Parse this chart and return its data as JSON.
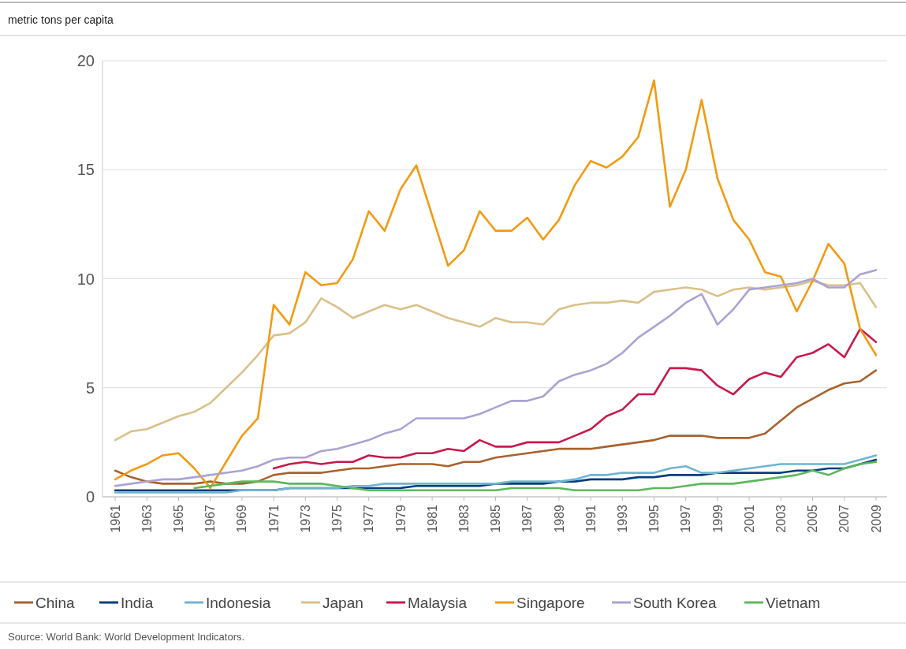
{
  "chart_data": {
    "type": "line",
    "ylabel": "metric tons per capita",
    "x": [
      1961,
      1962,
      1963,
      1964,
      1965,
      1966,
      1967,
      1968,
      1969,
      1970,
      1971,
      1972,
      1973,
      1974,
      1975,
      1976,
      1977,
      1978,
      1979,
      1980,
      1981,
      1982,
      1983,
      1984,
      1985,
      1986,
      1987,
      1988,
      1989,
      1990,
      1991,
      1992,
      1993,
      1994,
      1995,
      1996,
      1997,
      1998,
      1999,
      2000,
      2001,
      2002,
      2003,
      2004,
      2005,
      2006,
      2007,
      2008,
      2009
    ],
    "xlim": [
      1960.2,
      2009.7
    ],
    "xticks": [
      1961,
      1963,
      1965,
      1967,
      1969,
      1971,
      1973,
      1975,
      1977,
      1979,
      1981,
      1983,
      1985,
      1987,
      1989,
      1991,
      1993,
      1995,
      1997,
      1999,
      2001,
      2003,
      2005,
      2007,
      2009
    ],
    "ylim": [
      0,
      20
    ],
    "yticks": [
      0,
      5,
      10,
      15,
      20
    ],
    "grid": "y",
    "legend": "bottom",
    "line_style": "solid",
    "annotations": [
      "Source: World Bank: World Development Indicators."
    ],
    "series": [
      {
        "name": "China",
        "color": "#a8622e",
        "values": [
          1.2,
          0.9,
          0.7,
          0.6,
          0.6,
          0.6,
          0.7,
          0.6,
          0.6,
          0.7,
          1.0,
          1.1,
          1.1,
          1.1,
          1.2,
          1.3,
          1.3,
          1.4,
          1.5,
          1.5,
          1.5,
          1.4,
          1.6,
          1.6,
          1.8,
          1.9,
          2.0,
          2.1,
          2.2,
          2.2,
          2.2,
          2.3,
          2.4,
          2.5,
          2.6,
          2.8,
          2.8,
          2.8,
          2.7,
          2.7,
          2.7,
          2.9,
          3.5,
          4.1,
          4.5,
          4.9,
          5.2,
          5.3,
          5.8
        ]
      },
      {
        "name": "India",
        "color": "#0b3c7d",
        "values": [
          0.3,
          0.3,
          0.3,
          0.3,
          0.3,
          0.3,
          0.3,
          0.3,
          0.3,
          0.3,
          0.3,
          0.4,
          0.4,
          0.4,
          0.4,
          0.4,
          0.4,
          0.4,
          0.4,
          0.5,
          0.5,
          0.5,
          0.5,
          0.5,
          0.6,
          0.6,
          0.6,
          0.6,
          0.7,
          0.7,
          0.8,
          0.8,
          0.8,
          0.9,
          0.9,
          1.0,
          1.0,
          1.0,
          1.1,
          1.1,
          1.1,
          1.1,
          1.1,
          1.2,
          1.2,
          1.3,
          1.3,
          1.5,
          1.7
        ]
      },
      {
        "name": "Indonesia",
        "color": "#6fb5d0",
        "values": [
          0.2,
          0.2,
          0.2,
          0.2,
          0.2,
          0.2,
          0.2,
          0.2,
          0.3,
          0.3,
          0.3,
          0.4,
          0.4,
          0.4,
          0.4,
          0.5,
          0.5,
          0.6,
          0.6,
          0.6,
          0.6,
          0.6,
          0.6,
          0.6,
          0.6,
          0.7,
          0.7,
          0.7,
          0.7,
          0.8,
          1.0,
          1.0,
          1.1,
          1.1,
          1.1,
          1.3,
          1.4,
          1.1,
          1.1,
          1.2,
          1.3,
          1.4,
          1.5,
          1.5,
          1.5,
          1.5,
          1.5,
          1.7,
          1.9
        ]
      },
      {
        "name": "Japan",
        "color": "#d9c08a",
        "values": [
          2.6,
          3.0,
          3.1,
          3.4,
          3.7,
          3.9,
          4.3,
          5.0,
          5.7,
          6.5,
          7.4,
          7.5,
          8.0,
          9.1,
          8.7,
          8.2,
          8.5,
          8.8,
          8.6,
          8.8,
          8.5,
          8.2,
          8.0,
          7.8,
          8.2,
          8.0,
          8.0,
          7.9,
          8.6,
          8.8,
          8.9,
          8.9,
          9.0,
          8.9,
          9.4,
          9.5,
          9.6,
          9.5,
          9.2,
          9.5,
          9.6,
          9.5,
          9.6,
          9.7,
          9.9,
          9.7,
          9.7,
          9.8,
          8.7
        ]
      },
      {
        "name": "Malaysia",
        "color": "#c8194b",
        "values": [
          null,
          null,
          null,
          null,
          null,
          null,
          null,
          null,
          null,
          null,
          1.3,
          1.5,
          1.6,
          1.5,
          1.6,
          1.6,
          1.9,
          1.8,
          1.8,
          2.0,
          2.0,
          2.2,
          2.1,
          2.6,
          2.3,
          2.3,
          2.5,
          2.5,
          2.5,
          2.8,
          3.1,
          3.7,
          4.0,
          4.7,
          4.7,
          5.9,
          5.9,
          5.8,
          5.1,
          4.7,
          5.4,
          5.7,
          5.5,
          6.4,
          6.6,
          7.0,
          6.4,
          7.7,
          7.1
        ]
      },
      {
        "name": "Singapore",
        "color": "#f39a12",
        "values": [
          0.8,
          1.2,
          1.5,
          1.9,
          2.0,
          1.3,
          0.4,
          1.6,
          2.8,
          3.6,
          8.8,
          7.9,
          10.3,
          9.7,
          9.8,
          10.9,
          13.1,
          12.2,
          14.1,
          15.2,
          12.9,
          10.6,
          11.3,
          13.1,
          12.2,
          12.2,
          12.8,
          11.8,
          12.7,
          14.3,
          15.4,
          15.1,
          15.6,
          16.5,
          19.1,
          13.3,
          15.0,
          18.2,
          14.6,
          12.7,
          11.8,
          10.3,
          10.1,
          8.5,
          9.9,
          11.6,
          10.7,
          7.7,
          6.5
        ]
      },
      {
        "name": "South Korea",
        "color": "#a9a3d3",
        "values": [
          0.5,
          0.6,
          0.7,
          0.8,
          0.8,
          0.9,
          1.0,
          1.1,
          1.2,
          1.4,
          1.7,
          1.8,
          1.8,
          2.1,
          2.2,
          2.4,
          2.6,
          2.9,
          3.1,
          3.6,
          3.6,
          3.6,
          3.6,
          3.8,
          4.1,
          4.4,
          4.4,
          4.6,
          5.3,
          5.6,
          5.8,
          6.1,
          6.6,
          7.3,
          7.8,
          8.3,
          8.9,
          9.3,
          7.9,
          8.6,
          9.5,
          9.6,
          9.7,
          9.8,
          10.0,
          9.6,
          9.6,
          10.2,
          10.4
        ]
      },
      {
        "name": "Vietnam",
        "color": "#5cb85c",
        "values": [
          null,
          null,
          null,
          null,
          null,
          0.4,
          0.5,
          0.6,
          0.7,
          0.7,
          0.7,
          0.6,
          0.6,
          0.6,
          0.5,
          0.4,
          0.3,
          0.3,
          0.3,
          0.3,
          0.3,
          0.3,
          0.3,
          0.3,
          0.3,
          0.4,
          0.4,
          0.4,
          0.4,
          0.3,
          0.3,
          0.3,
          0.3,
          0.3,
          0.4,
          0.4,
          0.5,
          0.6,
          0.6,
          0.6,
          0.7,
          0.8,
          0.9,
          1.0,
          1.2,
          1.0,
          1.3,
          1.5,
          1.6
        ]
      }
    ]
  }
}
